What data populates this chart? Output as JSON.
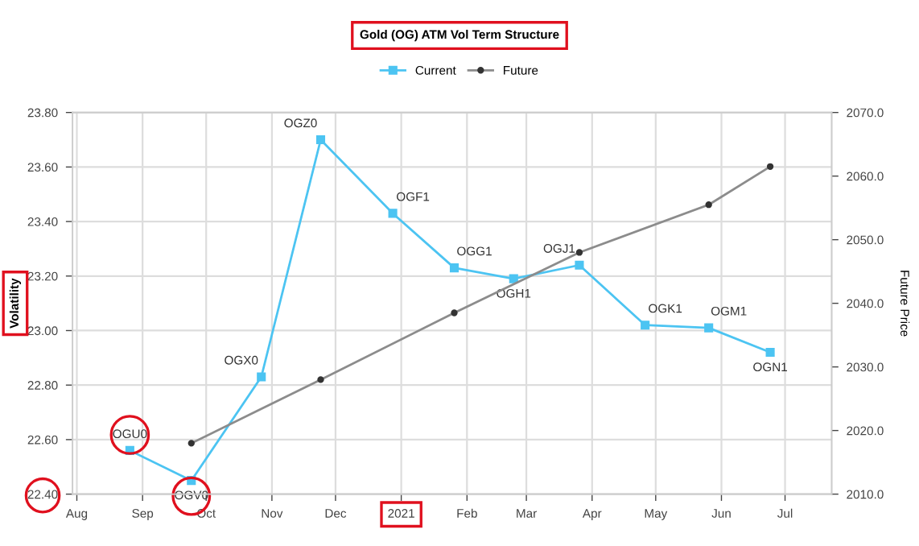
{
  "chart_data": {
    "type": "line",
    "title": "Gold (OG) ATM Vol Term Structure",
    "ylabel": "Volatility",
    "y2label": "Future Price",
    "series": [
      {
        "name": "Current",
        "color": "#4cc4f2",
        "marker": "square",
        "x": [
          "2020-08-26",
          "2020-09-24",
          "2020-10-27",
          "2020-11-24",
          "2020-12-28",
          "2021-01-26",
          "2021-02-23",
          "2021-03-26",
          "2021-04-26",
          "2021-05-26",
          "2021-06-24"
        ],
        "values": [
          22.56,
          22.45,
          22.83,
          23.7,
          23.43,
          23.23,
          23.19,
          23.24,
          23.02,
          23.01,
          22.92
        ]
      },
      {
        "name": "Future",
        "color": "#8c8c8c",
        "marker": "circle",
        "axis": "y2",
        "x": [
          "2020-09-24",
          "2020-11-24",
          "2021-01-26",
          "2021-03-26",
          "2021-05-26",
          "2021-06-24"
        ],
        "values": [
          2018.0,
          2028.0,
          2038.5,
          2048.0,
          2055.5,
          2061.5
        ]
      }
    ],
    "annotations": [
      {
        "text": "OGU0",
        "x": "2020-08-26",
        "y": 22.56
      },
      {
        "text": "OGV0",
        "x": "2020-09-24",
        "y": 22.45
      },
      {
        "text": "OGX0",
        "x": "2020-10-27",
        "y": 22.83
      },
      {
        "text": "OGZ0",
        "x": "2020-11-24",
        "y": 23.7
      },
      {
        "text": "OGF1",
        "x": "2020-12-28",
        "y": 23.43
      },
      {
        "text": "OGG1",
        "x": "2021-01-26",
        "y": 23.23
      },
      {
        "text": "OGH1",
        "x": "2021-02-23",
        "y": 23.19
      },
      {
        "text": "OGJ1",
        "x": "2021-03-26",
        "y": 23.24
      },
      {
        "text": "OGK1",
        "x": "2021-04-26",
        "y": 23.02
      },
      {
        "text": "OGM1",
        "x": "2021-05-26",
        "y": 23.01
      },
      {
        "text": "OGN1",
        "x": "2021-06-24",
        "y": 22.92
      }
    ],
    "xlim": [
      "2020-07-30",
      "2021-07-23"
    ],
    "xticks": [
      {
        "value": "2020-08-01",
        "label": "Aug"
      },
      {
        "value": "2020-09-01",
        "label": "Sep"
      },
      {
        "value": "2020-10-01",
        "label": "Oct"
      },
      {
        "value": "2020-11-01",
        "label": "Nov"
      },
      {
        "value": "2020-12-01",
        "label": "Dec"
      },
      {
        "value": "2021-01-01",
        "label": "2021"
      },
      {
        "value": "2021-02-01",
        "label": "Feb"
      },
      {
        "value": "2021-03-01",
        "label": "Mar"
      },
      {
        "value": "2021-04-01",
        "label": "Apr"
      },
      {
        "value": "2021-05-01",
        "label": "May"
      },
      {
        "value": "2021-06-01",
        "label": "Jun"
      },
      {
        "value": "2021-07-01",
        "label": "Jul"
      }
    ],
    "ylim": [
      22.4,
      23.8
    ],
    "yticks": [
      {
        "value": 22.4,
        "label": "22.40"
      },
      {
        "value": 22.6,
        "label": "22.60"
      },
      {
        "value": 22.8,
        "label": "22.80"
      },
      {
        "value": 23.0,
        "label": "23.00"
      },
      {
        "value": 23.2,
        "label": "23.20"
      },
      {
        "value": 23.4,
        "label": "23.40"
      },
      {
        "value": 23.6,
        "label": "23.60"
      },
      {
        "value": 23.8,
        "label": "23.80"
      }
    ],
    "y2lim": [
      2010,
      2070
    ],
    "y2ticks": [
      {
        "value": 2010,
        "label": "2010.0"
      },
      {
        "value": 2020,
        "label": "2020.0"
      },
      {
        "value": 2030,
        "label": "2030.0"
      },
      {
        "value": 2040,
        "label": "2040.0"
      },
      {
        "value": 2050,
        "label": "2050.0"
      },
      {
        "value": 2060,
        "label": "2060.0"
      },
      {
        "value": 2070,
        "label": "2070.0"
      }
    ],
    "grid": true,
    "legend": "top",
    "line_style": "solid"
  }
}
